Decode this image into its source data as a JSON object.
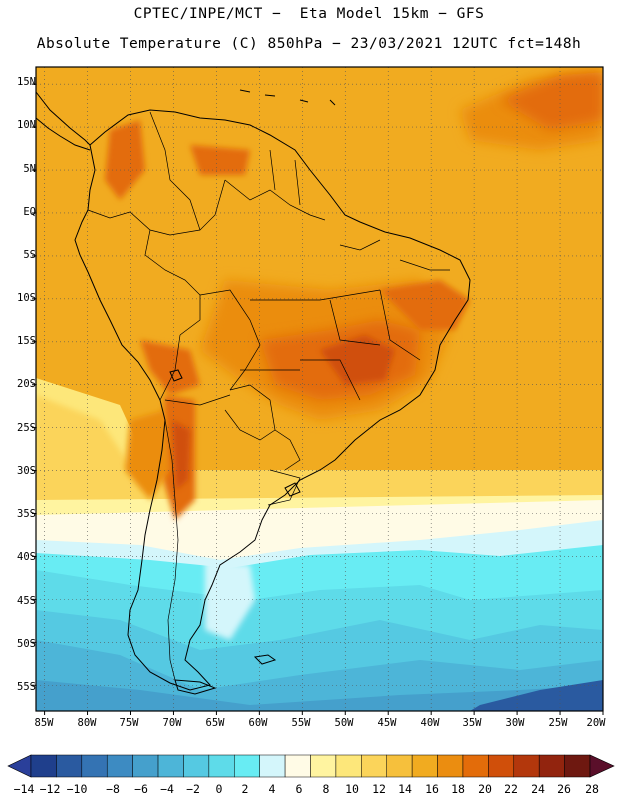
{
  "header": {
    "line1": "CPTEC/INPE/MCT −  Eta Model 15km − GFS",
    "line2": "Absolute Temperature (C) 850hPa − 23/03/2021 12UTC fct=148h"
  },
  "map": {
    "lat_range": [
      -58,
      17
    ],
    "lon_range": [
      -86,
      -20
    ],
    "lat_ticks": [
      "15N",
      "10N",
      "5N",
      "EQ",
      "5S",
      "10S",
      "15S",
      "20S",
      "25S",
      "30S",
      "35S",
      "40S",
      "45S",
      "50S",
      "55S"
    ],
    "lon_ticks": [
      "85W",
      "80W",
      "75W",
      "70W",
      "65W",
      "60W",
      "55W",
      "50W",
      "45W",
      "40W",
      "35W",
      "30W",
      "25W",
      "20W"
    ],
    "grid": true,
    "field": "temperature at 850hPa",
    "units": "C"
  },
  "colorbar": {
    "labels": [
      "−14",
      "−12",
      "−10",
      "−8",
      "−6",
      "−4",
      "−2",
      "0",
      "2",
      "4",
      "6",
      "8",
      "10",
      "12",
      "14",
      "16",
      "18",
      "20",
      "22",
      "24",
      "26",
      "28"
    ],
    "colors": [
      "#1f3f8c",
      "#2a5aa0",
      "#3473b3",
      "#3d8bc2",
      "#45a0cc",
      "#4db5d8",
      "#55c9e2",
      "#5edbe9",
      "#68ecf3",
      "#d4f6fb",
      "#fffbe6",
      "#fff4a0",
      "#fde77a",
      "#fbd45a",
      "#f6c03c",
      "#f1ab20",
      "#eb8d10",
      "#e36c0a",
      "#d04f0a",
      "#b3370c",
      "#92240e",
      "#6e1810"
    ],
    "low_arrow": "#2a3f9a",
    "high_arrow": "#5a0f2a"
  }
}
